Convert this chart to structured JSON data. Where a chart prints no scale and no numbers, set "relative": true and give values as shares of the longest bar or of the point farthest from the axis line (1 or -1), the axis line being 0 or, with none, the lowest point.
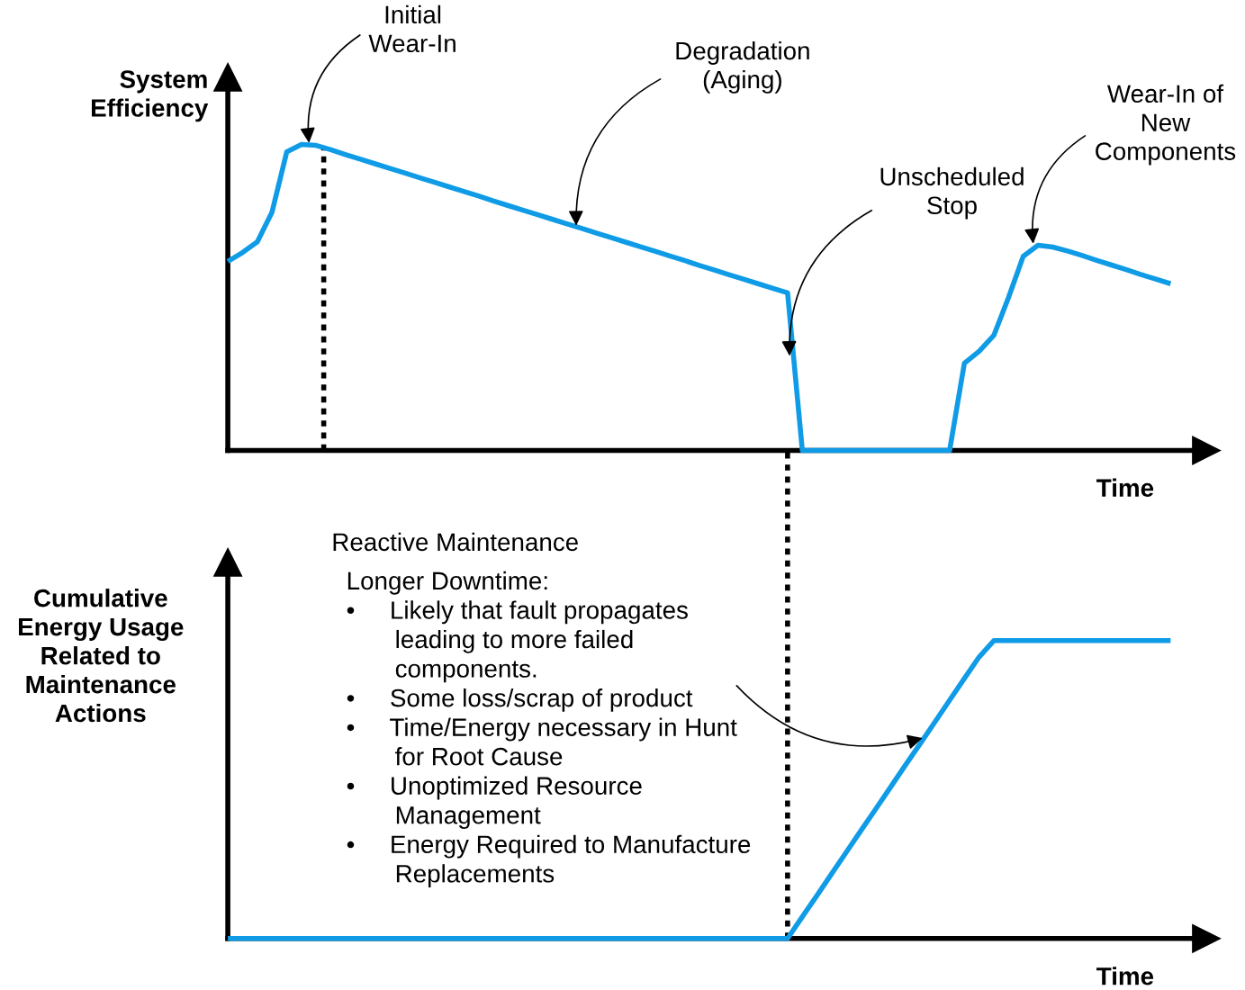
{
  "chart_data": [
    {
      "type": "line",
      "relative": true,
      "ylabel": "System\nEfficiency",
      "xlabel": "Time",
      "color": "#0f9be6",
      "categories": [
        null,
        null,
        null,
        null,
        null,
        null,
        null,
        null,
        null,
        null,
        null,
        null,
        null,
        null,
        null,
        null,
        null,
        null,
        null,
        null,
        null,
        null,
        null,
        null,
        null,
        null,
        null,
        null,
        null,
        null,
        null,
        null,
        null,
        null,
        null,
        null,
        null,
        null,
        null,
        null,
        null,
        null,
        null,
        null,
        null,
        null,
        null,
        null,
        null,
        null,
        null,
        null,
        null,
        null,
        null,
        null,
        null,
        null,
        null,
        null,
        null,
        null,
        null,
        null,
        null
      ],
      "values": [
        0.618,
        0.647,
        0.682,
        0.779,
        0.976,
        1.0,
        0.997,
        0.983,
        0.967,
        0.952,
        0.937,
        0.922,
        0.907,
        0.892,
        0.877,
        0.862,
        0.847,
        0.832,
        0.816,
        0.801,
        0.786,
        0.771,
        0.756,
        0.741,
        0.726,
        0.711,
        0.696,
        0.681,
        0.666,
        0.651,
        0.636,
        0.621,
        0.605,
        0.59,
        0.575,
        0.56,
        0.545,
        0.53,
        0.515,
        0,
        0,
        0,
        0,
        0,
        0,
        0,
        0,
        0,
        0,
        0,
        0.285,
        0.324,
        0.376,
        0.5,
        0.635,
        0.671,
        0.665,
        0.652,
        0.637,
        0.621,
        0.606,
        0.591,
        0.575,
        0.56,
        0.545
      ],
      "annotations": [
        "Initial\nWear-In",
        "Degradation\n(Aging)",
        "Unscheduled\nStop",
        "Wear-In of\nNew\nComponents"
      ]
    },
    {
      "type": "line",
      "relative": true,
      "ylabel": "Cumulative\nEnergy Usage\nRelated to\nMaintenance\nActions",
      "xlabel": "Time",
      "color": "#0f9be6",
      "categories": [
        null,
        null,
        null,
        null,
        null,
        null,
        null,
        null,
        null,
        null,
        null,
        null,
        null,
        null,
        null,
        null,
        null,
        null,
        null,
        null,
        null,
        null,
        null,
        null,
        null,
        null,
        null,
        null,
        null,
        null,
        null,
        null,
        null,
        null,
        null,
        null,
        null,
        null,
        null,
        null,
        null,
        null,
        null,
        null,
        null,
        null,
        null,
        null,
        null,
        null,
        null,
        null,
        null,
        null,
        null,
        null,
        null,
        null,
        null,
        null,
        null,
        null,
        null,
        null,
        null
      ],
      "values": [
        0,
        0,
        0,
        0,
        0,
        0,
        0,
        0,
        0,
        0,
        0,
        0,
        0,
        0,
        0,
        0,
        0,
        0,
        0,
        0,
        0,
        0,
        0,
        0,
        0,
        0,
        0,
        0,
        0,
        0,
        0,
        0,
        0,
        0,
        0,
        0,
        0,
        0,
        0,
        0.073,
        0.145,
        0.218,
        0.291,
        0.364,
        0.436,
        0.509,
        0.582,
        0.654,
        0.727,
        0.8,
        0.873,
        0.945,
        1,
        1,
        1,
        1,
        1,
        1,
        1,
        1,
        1,
        1,
        1,
        1,
        1
      ],
      "annotations": [
        "Reactive Maintenance",
        "Longer Downtime:\n•     Likely that fault propagates\n       leading to more failed\n       components.\n•     Some loss/scrap of product\n•     Time/Energy necessary in Hunt\n       for Root Cause\n•     Unoptimized Resource\n       Management\n•     Energy Required to Manufacture\n       Replacements"
      ]
    }
  ]
}
